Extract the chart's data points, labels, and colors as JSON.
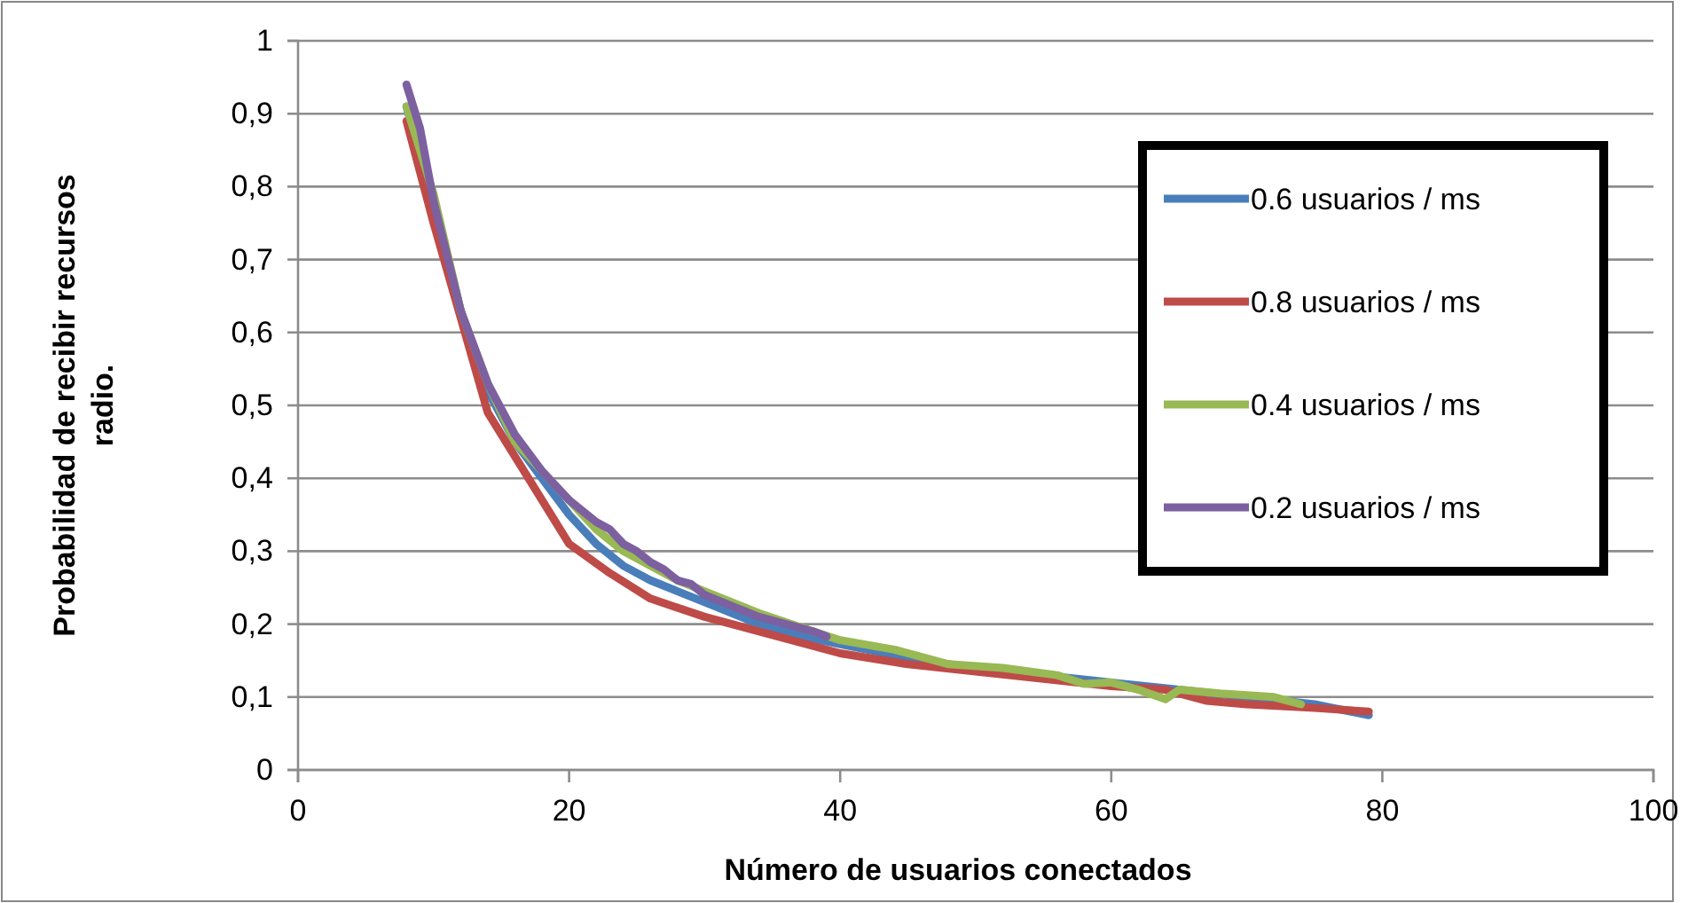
{
  "chart_data": {
    "type": "line",
    "xlabel": "Número de usuarios conectados",
    "ylabel": "Probabilidad de recibir recursos radio.",
    "xlim": [
      0,
      100
    ],
    "xticks": [
      0,
      20,
      40,
      60,
      80,
      100
    ],
    "ylim": [
      0,
      1
    ],
    "yticks": [
      0,
      {
        "value": 0.1,
        "label": "0,1"
      },
      {
        "value": 0.2,
        "label": "0,2"
      },
      {
        "value": 0.3,
        "label": "0,3"
      },
      {
        "value": 0.4,
        "label": "0,4"
      },
      {
        "value": 0.5,
        "label": "0,5"
      },
      {
        "value": 0.6,
        "label": "0,6"
      },
      {
        "value": 0.7,
        "label": "0,7"
      },
      {
        "value": 0.8,
        "label": "0,8"
      },
      {
        "value": 0.9,
        "label": "0,9"
      },
      1
    ],
    "grid": "y",
    "legend": "top right",
    "marker": "none",
    "line_style": "solid",
    "series": [
      {
        "name": "0.6 usuarios / ms",
        "color": "#4a7ebb",
        "x": [
          8,
          10,
          12,
          14,
          16,
          18,
          20,
          22,
          24,
          26,
          28,
          30,
          34,
          38,
          42,
          46,
          50,
          55,
          60,
          65,
          70,
          75,
          79
        ],
        "values": [
          0.91,
          0.78,
          0.63,
          0.52,
          0.45,
          0.4,
          0.35,
          0.31,
          0.28,
          0.26,
          0.245,
          0.23,
          0.2,
          0.18,
          0.165,
          0.15,
          0.14,
          0.13,
          0.12,
          0.11,
          0.1,
          0.09,
          0.075
        ]
      },
      {
        "name": "0.8 usuarios / ms",
        "color": "#be4b48",
        "x": [
          8,
          10,
          12,
          14,
          17,
          20,
          23,
          26,
          30,
          35,
          40,
          45,
          50,
          55,
          60,
          64,
          67,
          70,
          75,
          79
        ],
        "values": [
          0.89,
          0.75,
          0.62,
          0.49,
          0.4,
          0.31,
          0.27,
          0.235,
          0.21,
          0.185,
          0.16,
          0.145,
          0.135,
          0.125,
          0.115,
          0.11,
          0.095,
          0.09,
          0.085,
          0.08
        ]
      },
      {
        "name": "0.4 usuarios / ms",
        "color": "#98b954",
        "x": [
          8,
          10,
          12,
          14,
          16,
          18,
          20,
          22,
          24,
          26,
          28,
          30,
          34,
          38,
          40,
          44,
          48,
          52,
          56,
          58,
          60,
          62,
          64,
          65,
          68,
          72,
          74
        ],
        "values": [
          0.91,
          0.79,
          0.63,
          0.53,
          0.45,
          0.41,
          0.37,
          0.33,
          0.3,
          0.28,
          0.26,
          0.245,
          0.215,
          0.19,
          0.178,
          0.165,
          0.145,
          0.14,
          0.13,
          0.118,
          0.12,
          0.11,
          0.097,
          0.11,
          0.105,
          0.1,
          0.09
        ]
      },
      {
        "name": "0.2 usuarios / ms",
        "color": "#7d60a0",
        "x": [
          8,
          9,
          10,
          12,
          14,
          16,
          18,
          20,
          22,
          23,
          24,
          25,
          26,
          27,
          28,
          29,
          30,
          32,
          34,
          36,
          38,
          39
        ],
        "values": [
          0.94,
          0.88,
          0.78,
          0.63,
          0.53,
          0.46,
          0.41,
          0.37,
          0.34,
          0.33,
          0.31,
          0.3,
          0.285,
          0.275,
          0.26,
          0.255,
          0.24,
          0.225,
          0.21,
          0.2,
          0.19,
          0.183
        ]
      }
    ]
  }
}
